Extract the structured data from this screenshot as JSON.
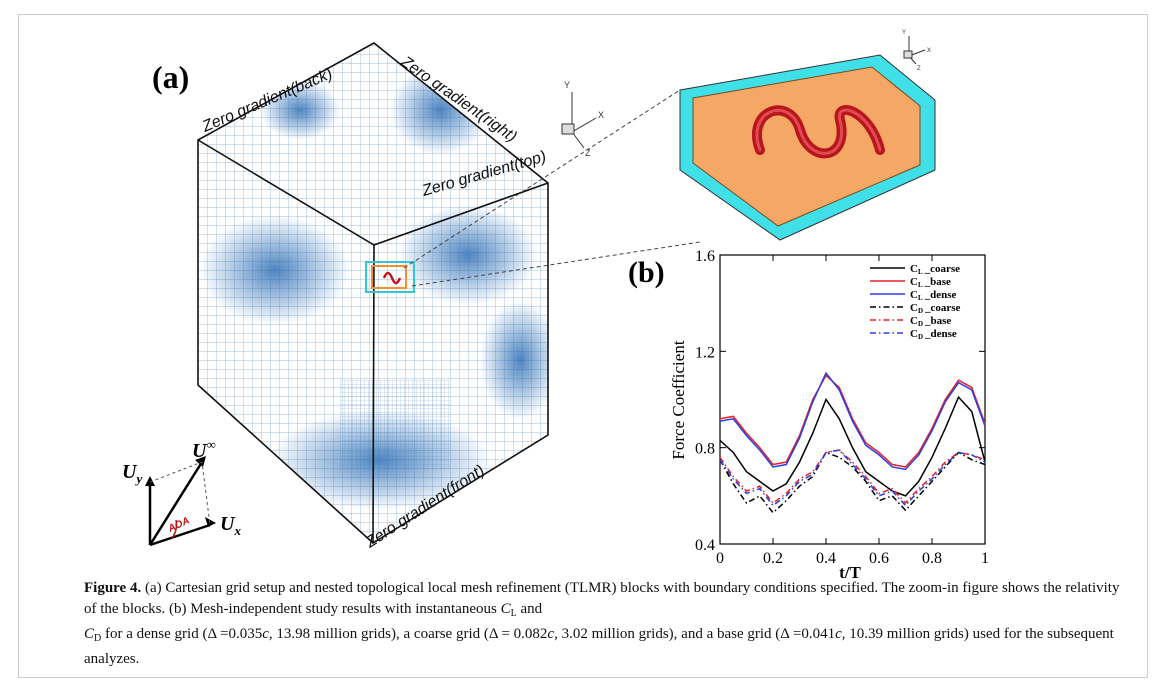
{
  "panel_a": {
    "label": "(a)",
    "boundaries": {
      "back": "Zero gradient(back)",
      "right": "Zero gradient(right)",
      "top": "Zero gradient(top)",
      "front": "Zero gradient(front)"
    },
    "axes_icon": {
      "x": "X",
      "y": "Y",
      "z": "Z"
    },
    "vectors": {
      "uy": {
        "symbol": "U",
        "sub": "y"
      },
      "uinf": {
        "symbol": "U",
        "sub": "∞"
      },
      "ux": {
        "symbol": "U",
        "sub": "x"
      },
      "aoa": "AOA"
    }
  },
  "chart_data": {
    "type": "line",
    "panel_label": "(b)",
    "xlabel": "t/T",
    "ylabel": "Force Coefficient",
    "x": [
      0,
      0.05,
      0.1,
      0.15,
      0.2,
      0.25,
      0.3,
      0.35,
      0.4,
      0.45,
      0.5,
      0.55,
      0.6,
      0.65,
      0.7,
      0.75,
      0.8,
      0.85,
      0.9,
      0.95,
      1
    ],
    "xlim": [
      0,
      1
    ],
    "xticks": [
      0,
      0.2,
      0.4,
      0.6,
      0.8,
      1
    ],
    "ylim": [
      0.4,
      1.6
    ],
    "yticks": [
      0.4,
      0.8,
      1.2,
      1.6
    ],
    "series": [
      {
        "symbol": "C",
        "subscript": "L",
        "name": "_coarse",
        "color": "#000000",
        "dash": "solid",
        "values": [
          0.83,
          0.78,
          0.7,
          0.66,
          0.62,
          0.65,
          0.74,
          0.86,
          1.0,
          0.92,
          0.8,
          0.7,
          0.66,
          0.62,
          0.6,
          0.66,
          0.76,
          0.88,
          1.01,
          0.95,
          0.74
        ]
      },
      {
        "symbol": "C",
        "subscript": "L",
        "name": "_base",
        "color": "#e8202a",
        "dash": "solid",
        "values": [
          0.92,
          0.93,
          0.86,
          0.8,
          0.73,
          0.74,
          0.85,
          1.0,
          1.1,
          1.05,
          0.92,
          0.82,
          0.78,
          0.73,
          0.72,
          0.78,
          0.88,
          1.0,
          1.08,
          1.05,
          0.9
        ]
      },
      {
        "symbol": "C",
        "subscript": "L",
        "name": "_dense",
        "color": "#2b3ee0",
        "dash": "solid",
        "values": [
          0.91,
          0.92,
          0.85,
          0.79,
          0.72,
          0.73,
          0.84,
          0.99,
          1.11,
          1.04,
          0.91,
          0.81,
          0.77,
          0.72,
          0.71,
          0.77,
          0.87,
          0.99,
          1.07,
          1.04,
          0.89
        ]
      },
      {
        "symbol": "C",
        "subscript": "D",
        "name": "_coarse",
        "color": "#000000",
        "dash": "dashdot",
        "values": [
          0.75,
          0.65,
          0.57,
          0.6,
          0.53,
          0.58,
          0.64,
          0.68,
          0.78,
          0.76,
          0.72,
          0.66,
          0.58,
          0.6,
          0.54,
          0.6,
          0.66,
          0.72,
          0.78,
          0.75,
          0.73
        ]
      },
      {
        "symbol": "C",
        "subscript": "D",
        "name": "_base",
        "color": "#e8202a",
        "dash": "dashdot",
        "values": [
          0.76,
          0.68,
          0.62,
          0.64,
          0.57,
          0.61,
          0.67,
          0.7,
          0.78,
          0.79,
          0.74,
          0.68,
          0.61,
          0.63,
          0.57,
          0.63,
          0.68,
          0.74,
          0.78,
          0.77,
          0.75
        ]
      },
      {
        "symbol": "C",
        "subscript": "D",
        "name": "_dense",
        "color": "#2b3ee0",
        "dash": "dashdot",
        "values": [
          0.75,
          0.67,
          0.61,
          0.63,
          0.56,
          0.6,
          0.66,
          0.69,
          0.78,
          0.79,
          0.73,
          0.67,
          0.6,
          0.62,
          0.56,
          0.62,
          0.67,
          0.73,
          0.78,
          0.77,
          0.74
        ]
      }
    ]
  },
  "caption": [
    {
      "text": "Figure 4.",
      "style": "b"
    },
    {
      "text": " (a) Cartesian grid setup and nested topological local mesh refinement (TLMR) blocks with boundary conditions specified. The zoom-in figure shows the relativity of the blocks. (b) Mesh-independent study results with instantaneous ",
      "style": "n"
    },
    {
      "text": "C",
      "style": "i"
    },
    {
      "text": "L",
      "style": "sub"
    },
    {
      "text": " and\n",
      "style": "n"
    },
    {
      "text": "C",
      "style": "i"
    },
    {
      "text": "D",
      "style": "sub"
    },
    {
      "text": " for a dense grid (Δ =0.035",
      "style": "n"
    },
    {
      "text": "c",
      "style": "i"
    },
    {
      "text": ", 13.98 million grids), a coarse grid (Δ = 0.082",
      "style": "n"
    },
    {
      "text": "c",
      "style": "i"
    },
    {
      "text": ", 3.02 million grids), and a base grid (Δ =0.041",
      "style": "n"
    },
    {
      "text": "c",
      "style": "i"
    },
    {
      "text": ", 10.39 million grids) used for the subsequent analyzes.",
      "style": "n"
    }
  ]
}
